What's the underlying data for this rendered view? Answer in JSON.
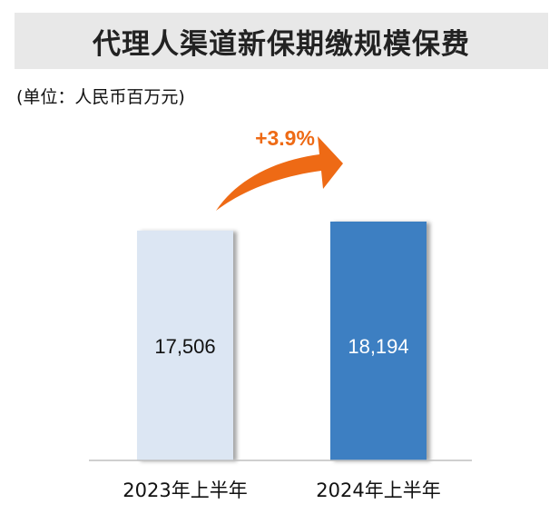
{
  "header": {
    "title": "代理人渠道新保期缴规模保费",
    "unit": "(单位：人民币百万元)"
  },
  "chart_data": {
    "type": "bar",
    "categories": [
      "2023年上半年",
      "2024年上半年"
    ],
    "values": [
      17506,
      18194
    ],
    "value_labels": [
      "17,506",
      "18,194"
    ],
    "ylim": [
      0,
      18194
    ],
    "growth_annotation": "+3.9%",
    "colors": {
      "bar_2023": "#dce6f3",
      "bar_2024": "#3d7fc2",
      "label_2023": "#111111",
      "label_2024": "#ffffff",
      "arrow": "#ee6a15",
      "axis": "#bfbfbf"
    }
  }
}
